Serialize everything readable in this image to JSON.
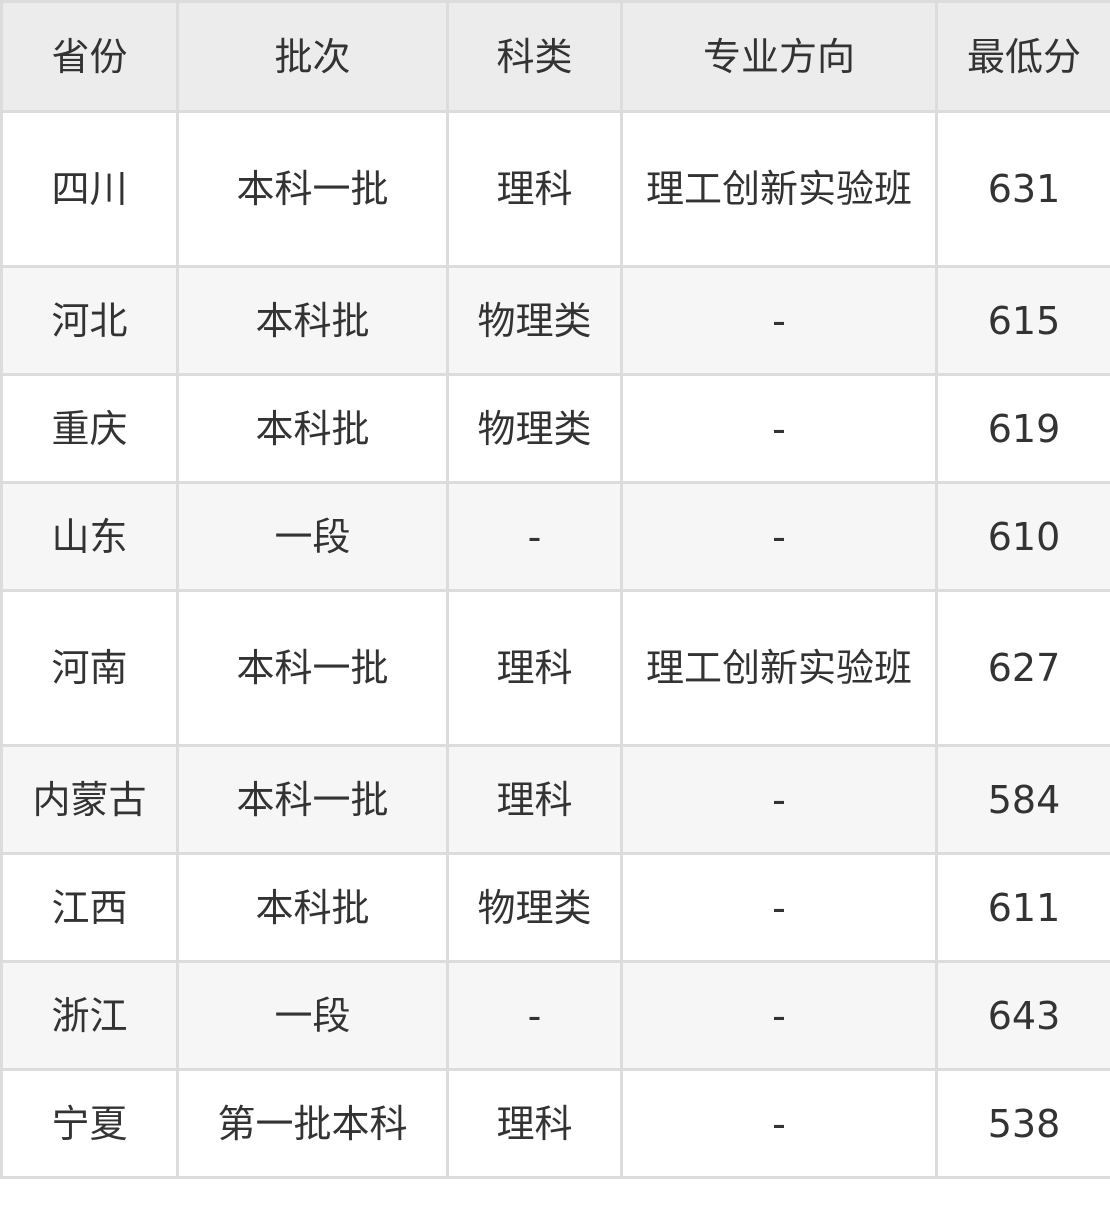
{
  "table": {
    "header": [
      "省份",
      "批次",
      "科类",
      "专业方向",
      "最低分"
    ],
    "rows": [
      [
        "四川",
        "本科一批",
        "理科",
        "理工创新实验班",
        631
      ],
      [
        "河北",
        "本科批",
        "物理类",
        "-",
        615
      ],
      [
        "重庆",
        "本科批",
        "物理类",
        "-",
        619
      ],
      [
        "山东",
        "一段",
        "-",
        "-",
        610
      ],
      [
        "河南",
        "本科一批",
        "理科",
        "理工创新实验班",
        627
      ],
      [
        "内蒙古",
        "本科一批",
        "理科",
        "-",
        584
      ],
      [
        "江西",
        "本科批",
        "物理类",
        "-",
        611
      ],
      [
        "浙江",
        "一段",
        "-",
        "-",
        643
      ],
      [
        "宁夏",
        "第一批本科",
        "理科",
        "-",
        538
      ]
    ]
  }
}
